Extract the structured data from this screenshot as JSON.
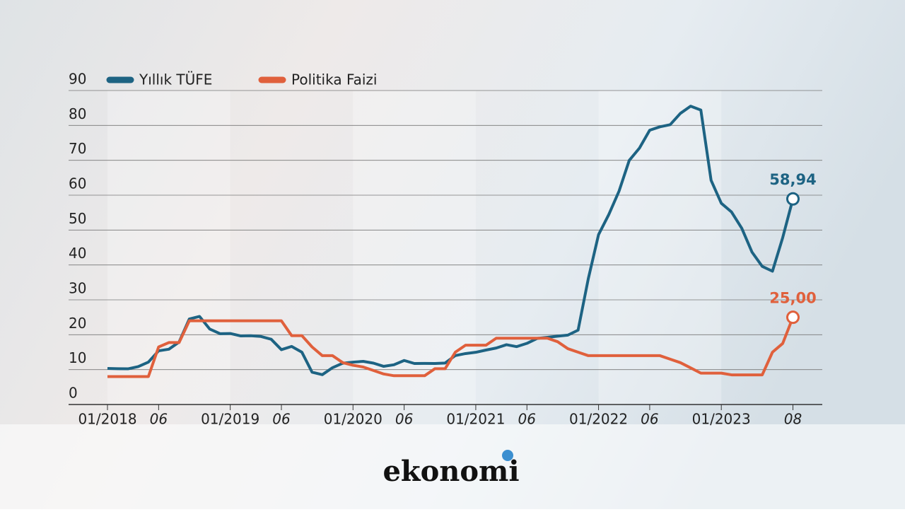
{
  "chart_data": {
    "type": "line",
    "categories": [
      "01/2018",
      null,
      null,
      null,
      null,
      "06",
      null,
      null,
      null,
      null,
      null,
      null,
      "01/2019",
      null,
      null,
      null,
      null,
      "06",
      null,
      null,
      null,
      null,
      null,
      null,
      "01/2020",
      null,
      null,
      null,
      null,
      "06",
      null,
      null,
      null,
      null,
      null,
      null,
      "01/2021",
      null,
      null,
      null,
      null,
      "06",
      null,
      null,
      null,
      null,
      null,
      null,
      "01/2022",
      null,
      null,
      null,
      null,
      "06",
      null,
      null,
      null,
      null,
      null,
      null,
      "01/2023",
      null,
      null,
      null,
      null,
      null,
      null,
      "08"
    ],
    "series": [
      {
        "name": "Yıllık TÜFE",
        "color": "#1d6383",
        "values": [
          10.35,
          10.26,
          10.23,
          10.85,
          12.15,
          15.39,
          15.85,
          17.9,
          24.52,
          25.24,
          21.62,
          20.3,
          20.35,
          19.67,
          19.71,
          19.5,
          18.71,
          15.72,
          16.65,
          15.01,
          9.26,
          8.55,
          10.56,
          11.84,
          12.15,
          12.37,
          11.86,
          10.94,
          11.39,
          12.62,
          11.76,
          11.77,
          11.75,
          11.89,
          14.03,
          14.6,
          14.97,
          15.61,
          16.19,
          17.14,
          16.59,
          17.53,
          18.95,
          19.25,
          19.58,
          19.89,
          21.31,
          36.08,
          48.69,
          54.44,
          61.14,
          69.97,
          73.5,
          78.62,
          79.6,
          80.21,
          83.45,
          85.51,
          84.39,
          64.27,
          57.68,
          55.18,
          50.51,
          43.68,
          39.59,
          38.21,
          47.83,
          58.94
        ],
        "end_label": "58,94"
      },
      {
        "name": "Politika Faizi",
        "color": "#e0603c",
        "values": [
          8,
          8,
          8,
          8,
          8,
          16.5,
          17.75,
          17.75,
          24,
          24,
          24,
          24,
          24,
          24,
          24,
          24,
          24,
          24,
          19.75,
          19.75,
          16.5,
          14,
          14,
          12,
          11.25,
          10.75,
          9.75,
          8.75,
          8.25,
          8.25,
          8.25,
          8.25,
          10.25,
          10.25,
          15,
          17,
          17,
          17,
          19,
          19,
          19,
          19,
          19,
          19,
          18,
          16,
          15,
          14,
          14,
          14,
          14,
          14,
          14,
          14,
          14,
          13,
          12,
          10.5,
          9,
          9,
          9,
          8.5,
          8.5,
          8.5,
          8.5,
          15,
          17.5,
          25
        ],
        "end_label": "25,00"
      }
    ],
    "ylim": [
      0,
      90
    ],
    "yticks": [
      0,
      10,
      20,
      30,
      40,
      50,
      60,
      70,
      80,
      90
    ],
    "grid": true,
    "logo": "ekonomi"
  }
}
